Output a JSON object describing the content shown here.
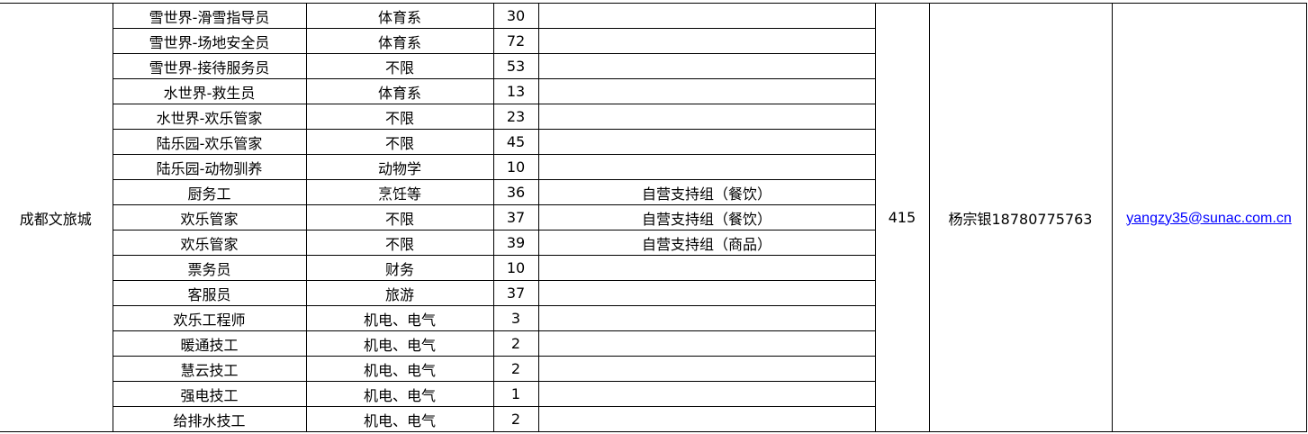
{
  "location": "成都文旅城",
  "total": "415",
  "contact": "杨宗银18780775763",
  "email": "yangzy35@sunac.com.cn",
  "colors": {
    "link": "#0000ff",
    "border": "#000000"
  },
  "rows": [
    {
      "position": "雪世界-滑雪指导员",
      "major": "体育系",
      "count": "30",
      "group": ""
    },
    {
      "position": "雪世界-场地安全员",
      "major": "体育系",
      "count": "72",
      "group": ""
    },
    {
      "position": "雪世界-接待服务员",
      "major": "不限",
      "count": "53",
      "group": ""
    },
    {
      "position": "水世界-救生员",
      "major": "体育系",
      "count": "13",
      "group": ""
    },
    {
      "position": "水世界-欢乐管家",
      "major": "不限",
      "count": "23",
      "group": ""
    },
    {
      "position": "陆乐园-欢乐管家",
      "major": "不限",
      "count": "45",
      "group": ""
    },
    {
      "position": "陆乐园-动物驯养",
      "major": "动物学",
      "count": "10",
      "group": ""
    },
    {
      "position": "厨务工",
      "major": "烹饪等",
      "count": "36",
      "group": "自营支持组（餐饮）"
    },
    {
      "position": "欢乐管家",
      "major": "不限",
      "count": "37",
      "group": "自营支持组（餐饮）"
    },
    {
      "position": "欢乐管家",
      "major": "不限",
      "count": "39",
      "group": "自营支持组（商品）"
    },
    {
      "position": "票务员",
      "major": "财务",
      "count": "10",
      "group": ""
    },
    {
      "position": "客服员",
      "major": "旅游",
      "count": "37",
      "group": ""
    },
    {
      "position": "欢乐工程师",
      "major": "机电、电气",
      "count": "3",
      "group": ""
    },
    {
      "position": "暖通技工",
      "major": "机电、电气",
      "count": "2",
      "group": ""
    },
    {
      "position": "慧云技工",
      "major": "机电、电气",
      "count": "2",
      "group": ""
    },
    {
      "position": "强电技工",
      "major": "机电、电气",
      "count": "1",
      "group": ""
    },
    {
      "position": "给排水技工",
      "major": "机电、电气",
      "count": "2",
      "group": ""
    }
  ]
}
